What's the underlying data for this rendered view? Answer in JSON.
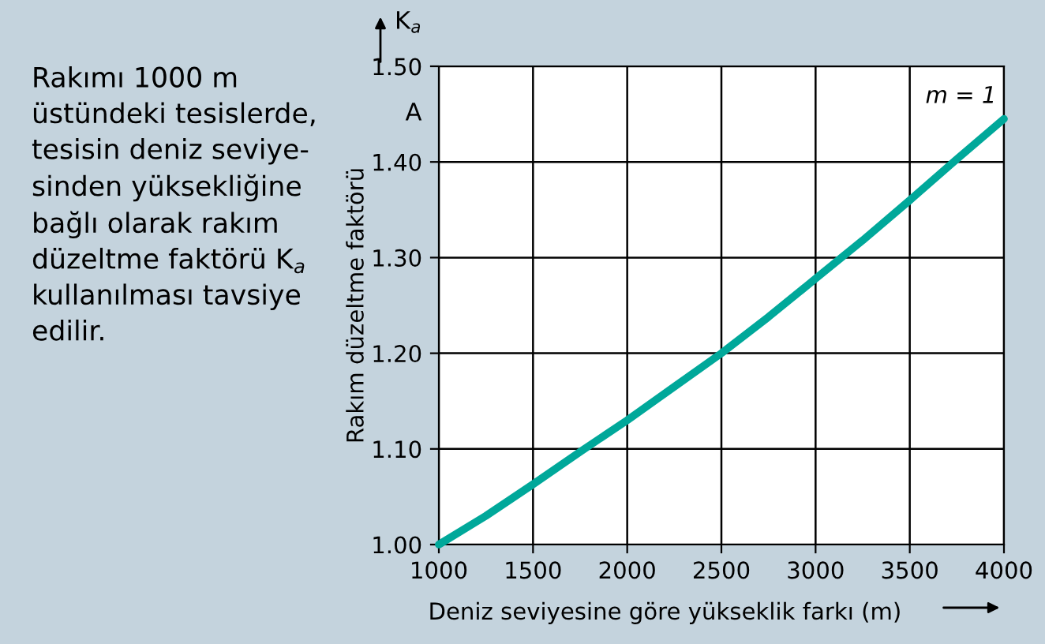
{
  "chart_data": {
    "type": "line",
    "xlabel": "Deniz seviyesine göre yükseklik farkı (m)",
    "ylabel": "Rakım düzeltme faktörü",
    "x": [
      1000,
      1250,
      1500,
      1750,
      2000,
      2250,
      2500,
      2750,
      3000,
      3250,
      3500,
      3750,
      4000
    ],
    "series": [
      {
        "name": "m = 1",
        "color": "#00a89a",
        "values": [
          1.0,
          1.03,
          1.063,
          1.097,
          1.13,
          1.165,
          1.2,
          1.238,
          1.278,
          1.318,
          1.36,
          1.403,
          1.445
        ]
      }
    ],
    "xlim": [
      1000,
      4000
    ],
    "xticks": [
      1000,
      1500,
      2000,
      2500,
      3000,
      3500,
      4000
    ],
    "ylim": [
      1.0,
      1.5
    ],
    "yticks": [
      {
        "value": 1.0,
        "label": "1.00"
      },
      {
        "value": 1.1,
        "label": "1.10"
      },
      {
        "value": 1.2,
        "label": "1.20"
      },
      {
        "value": 1.3,
        "label": "1.30"
      },
      {
        "value": 1.4,
        "label": "1.40"
      },
      {
        "value": 1.5,
        "label": "1.50"
      }
    ],
    "grid": true,
    "legend": false,
    "marker": "none",
    "line_style": "solid",
    "annotations": [
      "Rakımı 1000 m\nüstündeki tesislerde,\ntesisin deniz seviye-\nsinden yüksekliğine\nbağlı olarak rakım\ndüzeltme faktörü K$_{a}$\nkullanılması tavsiye\nedilir.",
      "K$_{a}$",
      "A"
    ]
  }
}
